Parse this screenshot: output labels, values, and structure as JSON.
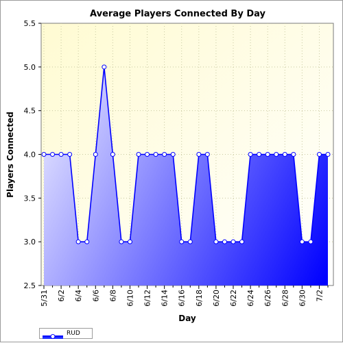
{
  "chart_data": {
    "type": "area",
    "title": "Average Players Connected By Day",
    "xlabel": "Day",
    "ylabel": "Players Connected",
    "ylim": [
      2.5,
      5.5
    ],
    "yticks": [
      "2.5",
      "3.0",
      "3.5",
      "4.0",
      "4.5",
      "5.0",
      "5.5"
    ],
    "grid": true,
    "legend_position": "bottom-left",
    "x": [
      "5/31",
      "6/1",
      "6/2",
      "6/3",
      "6/4",
      "6/5",
      "6/6",
      "6/7",
      "6/8",
      "6/9",
      "6/10",
      "6/11",
      "6/12",
      "6/13",
      "6/14",
      "6/15",
      "6/16",
      "6/17",
      "6/18",
      "6/19",
      "6/20",
      "6/21",
      "6/22",
      "6/23",
      "6/24",
      "6/25",
      "6/26",
      "6/27",
      "6/28",
      "6/29",
      "6/30",
      "7/1",
      "7/2",
      "7/3"
    ],
    "xtick_labels": [
      "5/31",
      "6/2",
      "6/4",
      "6/6",
      "6/8",
      "6/10",
      "6/12",
      "6/14",
      "6/16",
      "6/18",
      "6/20",
      "6/22",
      "6/24",
      "6/26",
      "6/28",
      "6/30",
      "7/2"
    ],
    "series": [
      {
        "name": "RUD",
        "color": "#0000ff",
        "values": [
          4.0,
          4.0,
          4.0,
          4.0,
          3.0,
          3.0,
          4.0,
          5.0,
          4.0,
          3.0,
          3.0,
          4.0,
          4.0,
          4.0,
          4.0,
          4.0,
          3.0,
          3.0,
          4.0,
          4.0,
          3.0,
          3.0,
          3.0,
          3.0,
          4.0,
          4.0,
          4.0,
          4.0,
          4.0,
          4.0,
          3.0,
          3.0,
          4.0,
          4.0
        ]
      }
    ],
    "colors": {
      "plot_background": "#fffde0",
      "area_light": "#d0d0ff",
      "area_dark": "#0000ff",
      "line": "#0000ff",
      "grid": "#c8c8a0"
    }
  }
}
